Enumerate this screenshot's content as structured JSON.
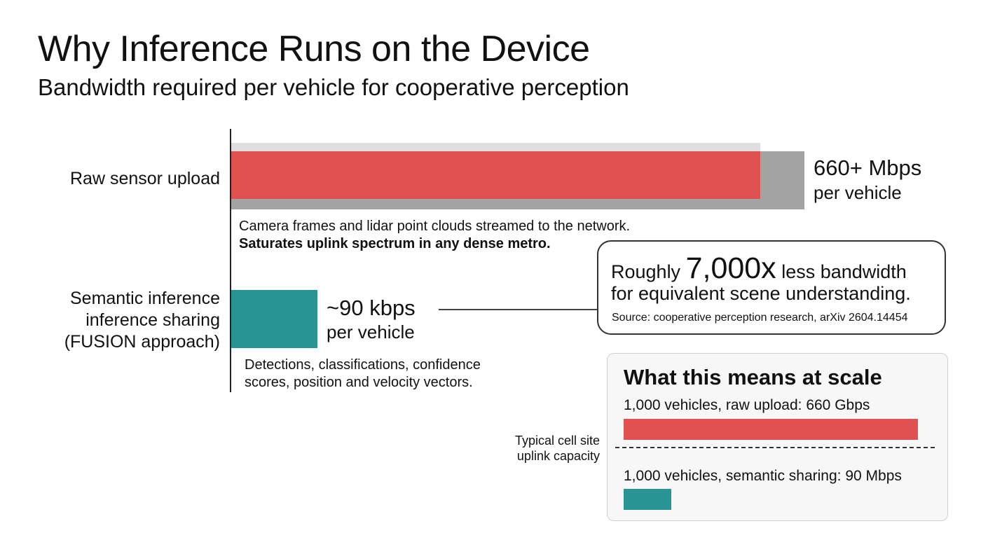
{
  "title": "Why Inference Runs on the Device",
  "subtitle": "Bandwidth required per vehicle for cooperative perception",
  "colors": {
    "raw": "#e05252",
    "semantic": "#2a9394",
    "raw_shadow": "#a3a3a3"
  },
  "chart_data": {
    "type": "bar",
    "orientation": "horizontal",
    "categories": [
      "Raw sensor upload",
      "Semantic inference sharing (FUSION approach)"
    ],
    "values_kbps": [
      660000,
      90
    ],
    "value_labels": [
      "660+ Mbps",
      "~90 kbps"
    ],
    "unit_labels": [
      "per vehicle",
      "per vehicle"
    ]
  },
  "bars": {
    "raw": {
      "label": "Raw sensor upload",
      "value": "660+ Mbps",
      "unit": "per vehicle",
      "note_line1": "Camera frames and lidar point clouds streamed to the network.",
      "note_line2": "Saturates uplink spectrum in any dense metro."
    },
    "semantic": {
      "label_lines": [
        "Semantic inference",
        "inference sharing",
        "(FUSION approach)"
      ],
      "value": "~90 kbps",
      "unit": "per vehicle",
      "note_line1": "Detections, classifications, confidence",
      "note_line2": "scores, position and velocity vectors."
    }
  },
  "callout": {
    "prefix": "Roughly",
    "big": "7,000x",
    "suffix": "less bandwidth",
    "line2": "for equivalent scene understanding.",
    "source": "Source: cooperative perception research, arXiv 2604.14454"
  },
  "scale": {
    "title": "What this means at scale",
    "raw_label": "1,000 vehicles, raw upload: 660 Gbps",
    "semantic_label": "1,000 vehicles, semantic sharing: 90 Mbps",
    "raw_fill": 0.86,
    "semantic_fill": 0.14,
    "capacity_lines": [
      "Typical cell site",
      "uplink capacity"
    ]
  }
}
